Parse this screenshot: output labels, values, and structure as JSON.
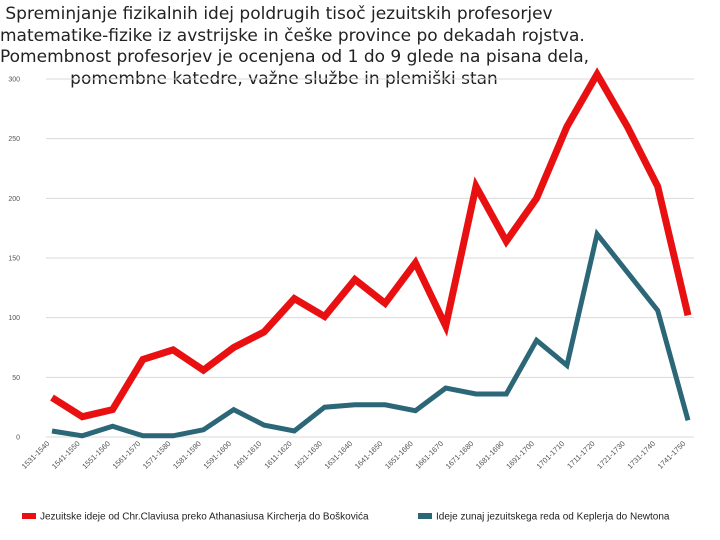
{
  "title_lines": [
    "Spreminjanje fizikalnih idej poldrugih tisoč jezuitskih profesorjev",
    "matematike-fizike iz avstrijske in češke province po dekadah rojstva.",
    "Pomembnost profesorjev je ocenjena od 1 do 9 glede na pisana dela,",
    "pomembne katedre, važne službe in plemiški stan"
  ],
  "colors": {
    "series1": "#e81010",
    "series2": "#2b6777",
    "grid": "#d9d9d9",
    "text": "#555555"
  },
  "chart_data": {
    "type": "line",
    "title": "Spreminjanje fizikalnih idej poldrugih tisoč jezuitskih profesorjev matematike-fizike iz avstrijske in češke province po dekadah rojstva. Pomembnost profesorjev je ocenjena od 1 do 9 glede na pisana dela, pomembne katedre, važne službe in plemiški stan",
    "xlabel": "",
    "ylabel": "",
    "ylim": [
      0,
      300
    ],
    "yticks": [
      0,
      50,
      100,
      150,
      200,
      250,
      300
    ],
    "grid": true,
    "legend_position": "bottom",
    "categories": [
      "1531-1540",
      "1541-1550",
      "1551-1560",
      "1561-1570",
      "1571-1580",
      "1581-1590",
      "1591-1600",
      "1601-1610",
      "1611-1620",
      "1621-1630",
      "1631-1640",
      "1641-1650",
      "1651-1660",
      "1661-1670",
      "1671-1680",
      "1681-1690",
      "1691-1700",
      "1701-1710",
      "1711-1720",
      "1721-1730",
      "1731-1740",
      "1741-1750"
    ],
    "series": [
      {
        "name": "Jezuitske ideje od Chr.Claviusa preko Athanasiusa Kircherja do Boškovića",
        "values": [
          33,
          17,
          23,
          65,
          73,
          56,
          75,
          88,
          116,
          101,
          132,
          112,
          146,
          93,
          210,
          164,
          200,
          260,
          304,
          260,
          210,
          102
        ]
      },
      {
        "name": "Ideje zunaj jezuitskega reda od Keplerja do Newtona",
        "values": [
          5,
          1,
          9,
          1,
          1,
          6,
          23,
          10,
          5,
          25,
          27,
          27,
          22,
          41,
          36,
          36,
          81,
          60,
          170,
          138,
          106,
          14
        ]
      }
    ]
  }
}
